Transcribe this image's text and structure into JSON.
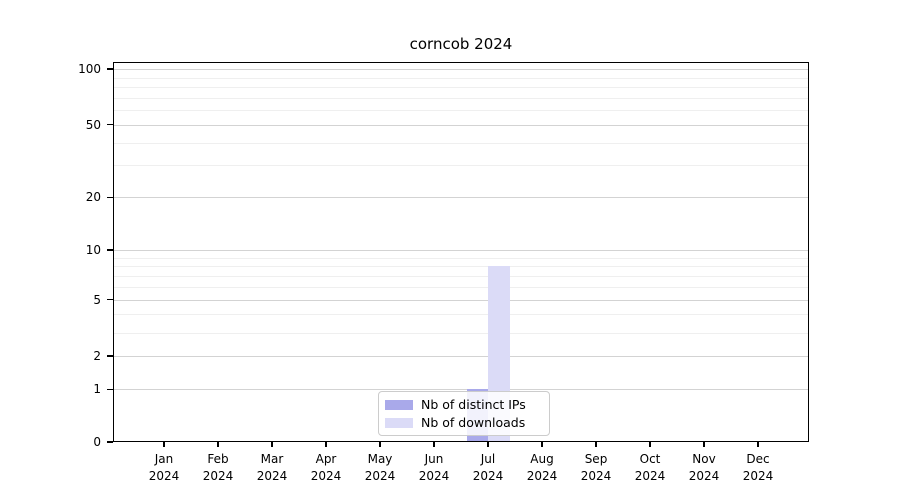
{
  "chart_data": {
    "type": "bar",
    "title": "corncob 2024",
    "categories": [
      {
        "month": "Jan",
        "year": "2024"
      },
      {
        "month": "Feb",
        "year": "2024"
      },
      {
        "month": "Mar",
        "year": "2024"
      },
      {
        "month": "Apr",
        "year": "2024"
      },
      {
        "month": "May",
        "year": "2024"
      },
      {
        "month": "Jun",
        "year": "2024"
      },
      {
        "month": "Jul",
        "year": "2024"
      },
      {
        "month": "Aug",
        "year": "2024"
      },
      {
        "month": "Sep",
        "year": "2024"
      },
      {
        "month": "Oct",
        "year": "2024"
      },
      {
        "month": "Nov",
        "year": "2024"
      },
      {
        "month": "Dec",
        "year": "2024"
      }
    ],
    "series": [
      {
        "name": "Nb of distinct IPs",
        "color": "#a9a9ea",
        "values": [
          0,
          0,
          0,
          0,
          0,
          0,
          1,
          0,
          0,
          0,
          0,
          0
        ]
      },
      {
        "name": "Nb of downloads",
        "color": "#dbdbf7",
        "values": [
          0,
          0,
          0,
          0,
          0,
          0,
          8,
          0,
          0,
          0,
          0,
          0
        ]
      }
    ],
    "xlabel": "",
    "ylabel": "",
    "y_scale": "log1p",
    "ylim": [
      0,
      100
    ],
    "y_major_ticks": [
      0,
      1,
      2,
      5,
      10,
      20,
      50,
      100
    ],
    "y_minor_gridlines": [
      3,
      4,
      6,
      7,
      8,
      9,
      30,
      40,
      60,
      70,
      80,
      90
    ],
    "grid": true,
    "legend_position": "lower center"
  },
  "colors": {
    "background": "#ffffff",
    "spine": "#000000",
    "grid_major": "#d3d3d3",
    "grid_minor": "#efefef",
    "text": "#000000",
    "legend_border": "#cccccc"
  }
}
